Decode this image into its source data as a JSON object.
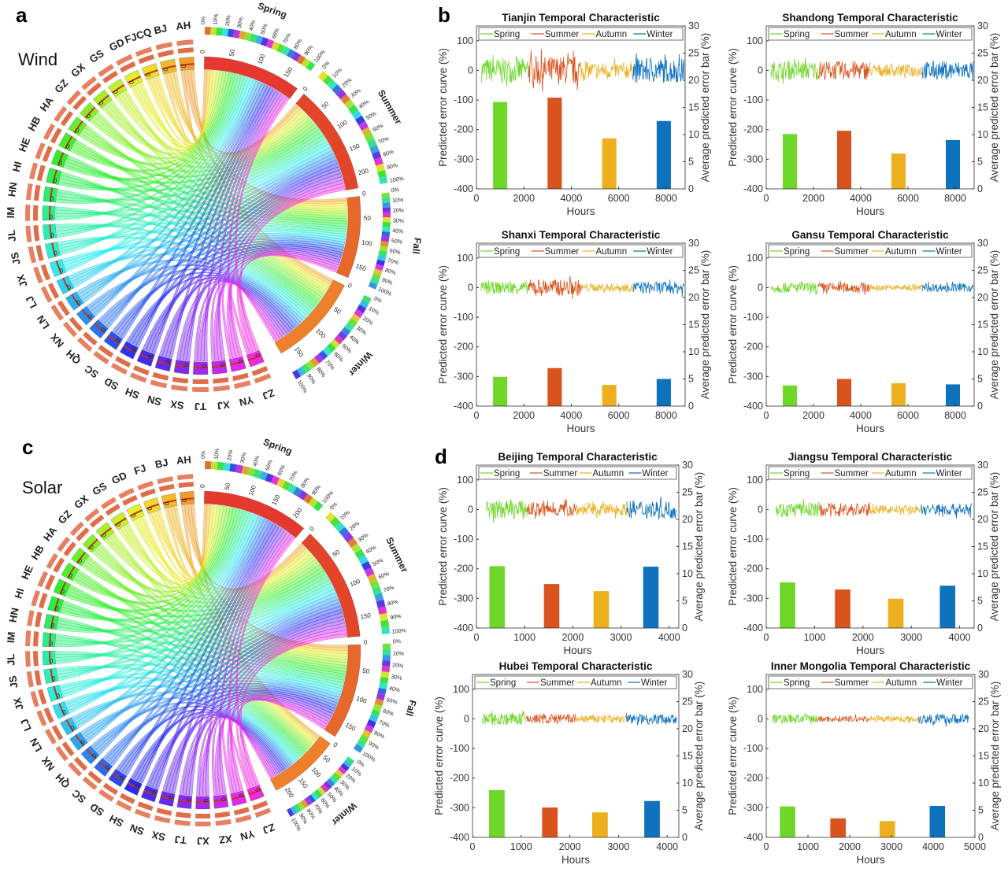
{
  "panels": {
    "a": {
      "letter": "a",
      "label": "Wind"
    },
    "b": {
      "letter": "b"
    },
    "c": {
      "letter": "c",
      "label": "Solar"
    },
    "d": {
      "letter": "d"
    }
  },
  "chord": [
    {
      "panel": "a",
      "provinces": [
        "AH",
        "BJ",
        "FJCQ",
        "GD",
        "GS",
        "GX",
        "GZ",
        "HA",
        "HB",
        "HE",
        "HI",
        "HN",
        "IM",
        "JL",
        "JS",
        "JX",
        "LJ",
        "LN",
        "NX",
        "QH",
        "SC",
        "SD",
        "SH",
        "SN",
        "SX",
        "TJ",
        "XJ",
        "YN",
        "ZJ"
      ],
      "province_tick": "0",
      "seasons": [
        {
          "name": "Spring",
          "ticks": [
            "0",
            "50",
            "100",
            "150"
          ],
          "color": "#e5392f"
        },
        {
          "name": "Summer",
          "ticks": [
            "0",
            "50",
            "100",
            "150",
            "200"
          ],
          "color": "#e3452b"
        },
        {
          "name": "Fall",
          "ticks": [
            "0",
            "50",
            "100",
            "150"
          ],
          "color": "#e8672a"
        },
        {
          "name": "Winter",
          "ticks": [
            "0",
            "50",
            "100",
            "150"
          ],
          "color": "#ee7f2b"
        }
      ],
      "percent_labels": [
        "0%",
        "10%",
        "20%",
        "30%",
        "40%",
        "50%",
        "60%",
        "70%",
        "80%",
        "90%",
        "100%"
      ]
    },
    {
      "panel": "c",
      "provinces": [
        "AH",
        "BJ",
        "FJ",
        "GD",
        "GS",
        "GX",
        "GZ",
        "HA",
        "HB",
        "HE",
        "HI",
        "HN",
        "IM",
        "JL",
        "JS",
        "JX",
        "LJ",
        "LN",
        "NX",
        "QH",
        "SC",
        "SD",
        "SH",
        "SN",
        "SX",
        "TJ",
        "XJ",
        "XZ",
        "YN",
        "ZJ"
      ],
      "province_tick": "0",
      "seasons": [
        {
          "name": "Spring",
          "ticks": [
            "0",
            "50",
            "100",
            "150",
            "200"
          ],
          "color": "#e5392f"
        },
        {
          "name": "Summer",
          "ticks": [
            "0",
            "50",
            "100",
            "150"
          ],
          "color": "#e3452b"
        },
        {
          "name": "Fall",
          "ticks": [
            "0",
            "50",
            "100",
            "150"
          ],
          "color": "#e8672a"
        },
        {
          "name": "Winter",
          "ticks": [
            "0",
            "50",
            "100",
            "150",
            "200"
          ],
          "color": "#ee7f2b"
        }
      ],
      "percent_labels": [
        "0%",
        "10%",
        "20%",
        "30%",
        "40%",
        "50%",
        "60%",
        "70%",
        "80%",
        "90%",
        "100%"
      ]
    }
  ],
  "series_colors": {
    "Spring": "#6fd62a",
    "Summer": "#d9531e",
    "Autumn": "#ecb01f",
    "Winter": "#0f72bd"
  },
  "chart_data": [
    {
      "type": "bar+line",
      "title": "Tianjin Temporal Characteristic",
      "xlabel": "Hours",
      "ylabel": "Predicted error curve (%)",
      "y2label": "Average predicted error bar (%)",
      "xlim": [
        0,
        8800
      ],
      "xticks": [
        0,
        2000,
        4000,
        6000,
        8000
      ],
      "ylim": [
        -400,
        150
      ],
      "yticks": [
        -400,
        -300,
        -200,
        -100,
        0,
        100
      ],
      "y2lim": [
        0,
        30
      ],
      "y2ticks": [
        0,
        5,
        10,
        15,
        20,
        25,
        30
      ],
      "legend": "top",
      "series": [
        {
          "name": "Spring",
          "bar_x": 1000,
          "bar_value": 16,
          "curve_x_range": [
            200,
            2200
          ],
          "curve_amplitude": 60
        },
        {
          "name": "Summer",
          "bar_x": 3300,
          "bar_value": 16.8,
          "curve_x_range": [
            2200,
            4400
          ],
          "curve_amplitude": 70
        },
        {
          "name": "Autumn",
          "bar_x": 5600,
          "bar_value": 9.3,
          "curve_x_range": [
            4400,
            6600
          ],
          "curve_amplitude": 40
        },
        {
          "name": "Winter",
          "bar_x": 7900,
          "bar_value": 12.5,
          "curve_x_range": [
            6600,
            8760
          ],
          "curve_amplitude": 60
        }
      ],
      "bar_width": 600
    },
    {
      "type": "bar+line",
      "title": "Shandong Temporal Characteristic",
      "xlabel": "Hours",
      "ylabel": "Predicted error curve (%)",
      "y2label": "Average predicted error bar (%)",
      "xlim": [
        0,
        8800
      ],
      "xticks": [
        0,
        2000,
        4000,
        6000,
        8000
      ],
      "ylim": [
        -400,
        150
      ],
      "yticks": [
        -400,
        -300,
        -200,
        -100,
        0,
        100
      ],
      "y2lim": [
        0,
        30
      ],
      "y2ticks": [
        0,
        5,
        10,
        15,
        20,
        25,
        30
      ],
      "legend": "top",
      "series": [
        {
          "name": "Spring",
          "bar_x": 1000,
          "bar_value": 10.1,
          "curve_x_range": [
            200,
            2200
          ],
          "curve_amplitude": 45
        },
        {
          "name": "Summer",
          "bar_x": 3300,
          "bar_value": 10.7,
          "curve_x_range": [
            2200,
            4400
          ],
          "curve_amplitude": 45
        },
        {
          "name": "Autumn",
          "bar_x": 5600,
          "bar_value": 6.5,
          "curve_x_range": [
            4400,
            6600
          ],
          "curve_amplitude": 30
        },
        {
          "name": "Winter",
          "bar_x": 7900,
          "bar_value": 9,
          "curve_x_range": [
            6600,
            8760
          ],
          "curve_amplitude": 45
        }
      ],
      "bar_width": 600
    },
    {
      "type": "bar+line",
      "title": "Shanxi Temporal Characteristic",
      "xlabel": "Hours",
      "ylabel": "Predicted error curve (%)",
      "y2label": "Average predicted error bar (%)",
      "xlim": [
        0,
        8800
      ],
      "xticks": [
        0,
        2000,
        4000,
        6000,
        8000
      ],
      "ylim": [
        -400,
        150
      ],
      "yticks": [
        -400,
        -300,
        -200,
        -100,
        0,
        100
      ],
      "y2lim": [
        0,
        30
      ],
      "y2ticks": [
        0,
        5,
        10,
        15,
        20,
        25,
        30
      ],
      "legend": "top",
      "series": [
        {
          "name": "Spring",
          "bar_x": 1000,
          "bar_value": 5.4,
          "curve_x_range": [
            200,
            2200
          ],
          "curve_amplitude": 30
        },
        {
          "name": "Summer",
          "bar_x": 3300,
          "bar_value": 7,
          "curve_x_range": [
            2200,
            4400
          ],
          "curve_amplitude": 40
        },
        {
          "name": "Autumn",
          "bar_x": 5600,
          "bar_value": 3.9,
          "curve_x_range": [
            4400,
            6600
          ],
          "curve_amplitude": 20
        },
        {
          "name": "Winter",
          "bar_x": 7900,
          "bar_value": 5,
          "curve_x_range": [
            6600,
            8760
          ],
          "curve_amplitude": 30
        }
      ],
      "bar_width": 600
    },
    {
      "type": "bar+line",
      "title": "Gansu Temporal Characteristic",
      "xlabel": "Hours",
      "ylabel": "Predicted error curve (%)",
      "y2label": "Average predicted error bar (%)",
      "xlim": [
        0,
        8800
      ],
      "xticks": [
        0,
        2000,
        4000,
        6000,
        8000
      ],
      "ylim": [
        -400,
        150
      ],
      "yticks": [
        -400,
        -300,
        -200,
        -100,
        0,
        100
      ],
      "y2lim": [
        0,
        30
      ],
      "y2ticks": [
        0,
        5,
        10,
        15,
        20,
        25,
        30
      ],
      "legend": "top",
      "series": [
        {
          "name": "Spring",
          "bar_x": 1000,
          "bar_value": 3.8,
          "curve_x_range": [
            200,
            2200
          ],
          "curve_amplitude": 25
        },
        {
          "name": "Summer",
          "bar_x": 3300,
          "bar_value": 5,
          "curve_x_range": [
            2200,
            4400
          ],
          "curve_amplitude": 25
        },
        {
          "name": "Autumn",
          "bar_x": 5600,
          "bar_value": 4.2,
          "curve_x_range": [
            4400,
            6600
          ],
          "curve_amplitude": 15
        },
        {
          "name": "Winter",
          "bar_x": 7900,
          "bar_value": 4,
          "curve_x_range": [
            6600,
            8760
          ],
          "curve_amplitude": 20
        }
      ],
      "bar_width": 600
    },
    {
      "type": "bar+line",
      "title": "Beijing Temporal Characteristic",
      "xlabel": "Hours",
      "ylabel": "Predicted error curve (%)",
      "y2label": "Average predicted error bar (%)",
      "xlim": [
        0,
        4200
      ],
      "xticks": [
        0,
        1000,
        2000,
        3000,
        4000
      ],
      "ylim": [
        -400,
        150
      ],
      "yticks": [
        -400,
        -300,
        -200,
        -100,
        0,
        100
      ],
      "y2lim": [
        0,
        30
      ],
      "y2ticks": [
        0,
        5,
        10,
        15,
        20,
        25,
        30
      ],
      "legend": "top",
      "series": [
        {
          "name": "Spring",
          "bar_x": 430,
          "bar_value": 11.4,
          "curve_x_range": [
            200,
            1050
          ],
          "curve_amplitude": 45
        },
        {
          "name": "Summer",
          "bar_x": 1560,
          "bar_value": 8.1,
          "curve_x_range": [
            1050,
            2080
          ],
          "curve_amplitude": 35
        },
        {
          "name": "Autumn",
          "bar_x": 2590,
          "bar_value": 6.8,
          "curve_x_range": [
            2080,
            3120
          ],
          "curve_amplitude": 30
        },
        {
          "name": "Winter",
          "bar_x": 3620,
          "bar_value": 11.3,
          "curve_x_range": [
            3120,
            4150
          ],
          "curve_amplitude": 45
        }
      ],
      "bar_width": 320
    },
    {
      "type": "bar+line",
      "title": "Jiangsu Temporal Characteristic",
      "xlabel": "Hours",
      "ylabel": "Predicted error curve (%)",
      "y2label": "Average predicted error bar (%)",
      "xlim": [
        0,
        4300
      ],
      "xticks": [
        0,
        1000,
        2000,
        3000,
        4000
      ],
      "ylim": [
        -400,
        150
      ],
      "yticks": [
        -400,
        -300,
        -200,
        -100,
        0,
        100
      ],
      "y2lim": [
        0,
        30
      ],
      "y2ticks": [
        0,
        5,
        10,
        15,
        20,
        25,
        30
      ],
      "legend": "top",
      "series": [
        {
          "name": "Spring",
          "bar_x": 440,
          "bar_value": 8.4,
          "curve_x_range": [
            200,
            1100
          ],
          "curve_amplitude": 35
        },
        {
          "name": "Summer",
          "bar_x": 1580,
          "bar_value": 7.1,
          "curve_x_range": [
            1100,
            2150
          ],
          "curve_amplitude": 35
        },
        {
          "name": "Autumn",
          "bar_x": 2680,
          "bar_value": 5.4,
          "curve_x_range": [
            2150,
            3200
          ],
          "curve_amplitude": 20
        },
        {
          "name": "Winter",
          "bar_x": 3750,
          "bar_value": 7.8,
          "curve_x_range": [
            3200,
            4250
          ],
          "curve_amplitude": 30
        }
      ],
      "bar_width": 320
    },
    {
      "type": "bar+line",
      "title": "Hubei Temporal Characteristic",
      "xlabel": "Hours",
      "ylabel": "Predicted error curve (%)",
      "y2label": "Average predicted error bar (%)",
      "xlim": [
        0,
        4240
      ],
      "xticks": [
        0,
        1000,
        2000,
        3000,
        4000
      ],
      "ylim": [
        -400,
        150
      ],
      "yticks": [
        -400,
        -300,
        -200,
        -100,
        0,
        100
      ],
      "y2lim": [
        0,
        30
      ],
      "y2ticks": [
        0,
        5,
        10,
        15,
        20,
        25,
        30
      ],
      "legend": "top",
      "series": [
        {
          "name": "Spring",
          "bar_x": 500,
          "bar_value": 8.7,
          "curve_x_range": [
            200,
            1100
          ],
          "curve_amplitude": 30
        },
        {
          "name": "Summer",
          "bar_x": 1590,
          "bar_value": 5.5,
          "curve_x_range": [
            1100,
            2120
          ],
          "curve_amplitude": 25
        },
        {
          "name": "Autumn",
          "bar_x": 2620,
          "bar_value": 4.6,
          "curve_x_range": [
            2120,
            3160
          ],
          "curve_amplitude": 20
        },
        {
          "name": "Winter",
          "bar_x": 3690,
          "bar_value": 6.7,
          "curve_x_range": [
            3160,
            4200
          ],
          "curve_amplitude": 25
        }
      ],
      "bar_width": 320
    },
    {
      "type": "bar+line",
      "title": "Inner Mongolia Temporal Characteristic",
      "xlabel": "Hours",
      "ylabel": "Predicted error curve (%)",
      "y2label": "Average predicted error bar (%)",
      "xlim": [
        0,
        5000
      ],
      "xticks": [
        0,
        1000,
        2000,
        3000,
        4000,
        5000
      ],
      "ylim": [
        -400,
        150
      ],
      "yticks": [
        -400,
        -300,
        -200,
        -100,
        0,
        100
      ],
      "y2lim": [
        0,
        30
      ],
      "y2ticks": [
        0,
        5,
        10,
        15,
        20,
        25,
        30
      ],
      "legend": "top",
      "series": [
        {
          "name": "Spring",
          "bar_x": 510,
          "bar_value": 5.7,
          "curve_x_range": [
            150,
            1250
          ],
          "curve_amplitude": 25
        },
        {
          "name": "Summer",
          "bar_x": 1720,
          "bar_value": 3.5,
          "curve_x_range": [
            1250,
            2450
          ],
          "curve_amplitude": 15
        },
        {
          "name": "Autumn",
          "bar_x": 2900,
          "bar_value": 3,
          "curve_x_range": [
            2450,
            3650
          ],
          "curve_amplitude": 15
        },
        {
          "name": "Winter",
          "bar_x": 4100,
          "bar_value": 5.8,
          "curve_x_range": [
            3650,
            4850
          ],
          "curve_amplitude": 25
        }
      ],
      "bar_width": 370
    }
  ]
}
